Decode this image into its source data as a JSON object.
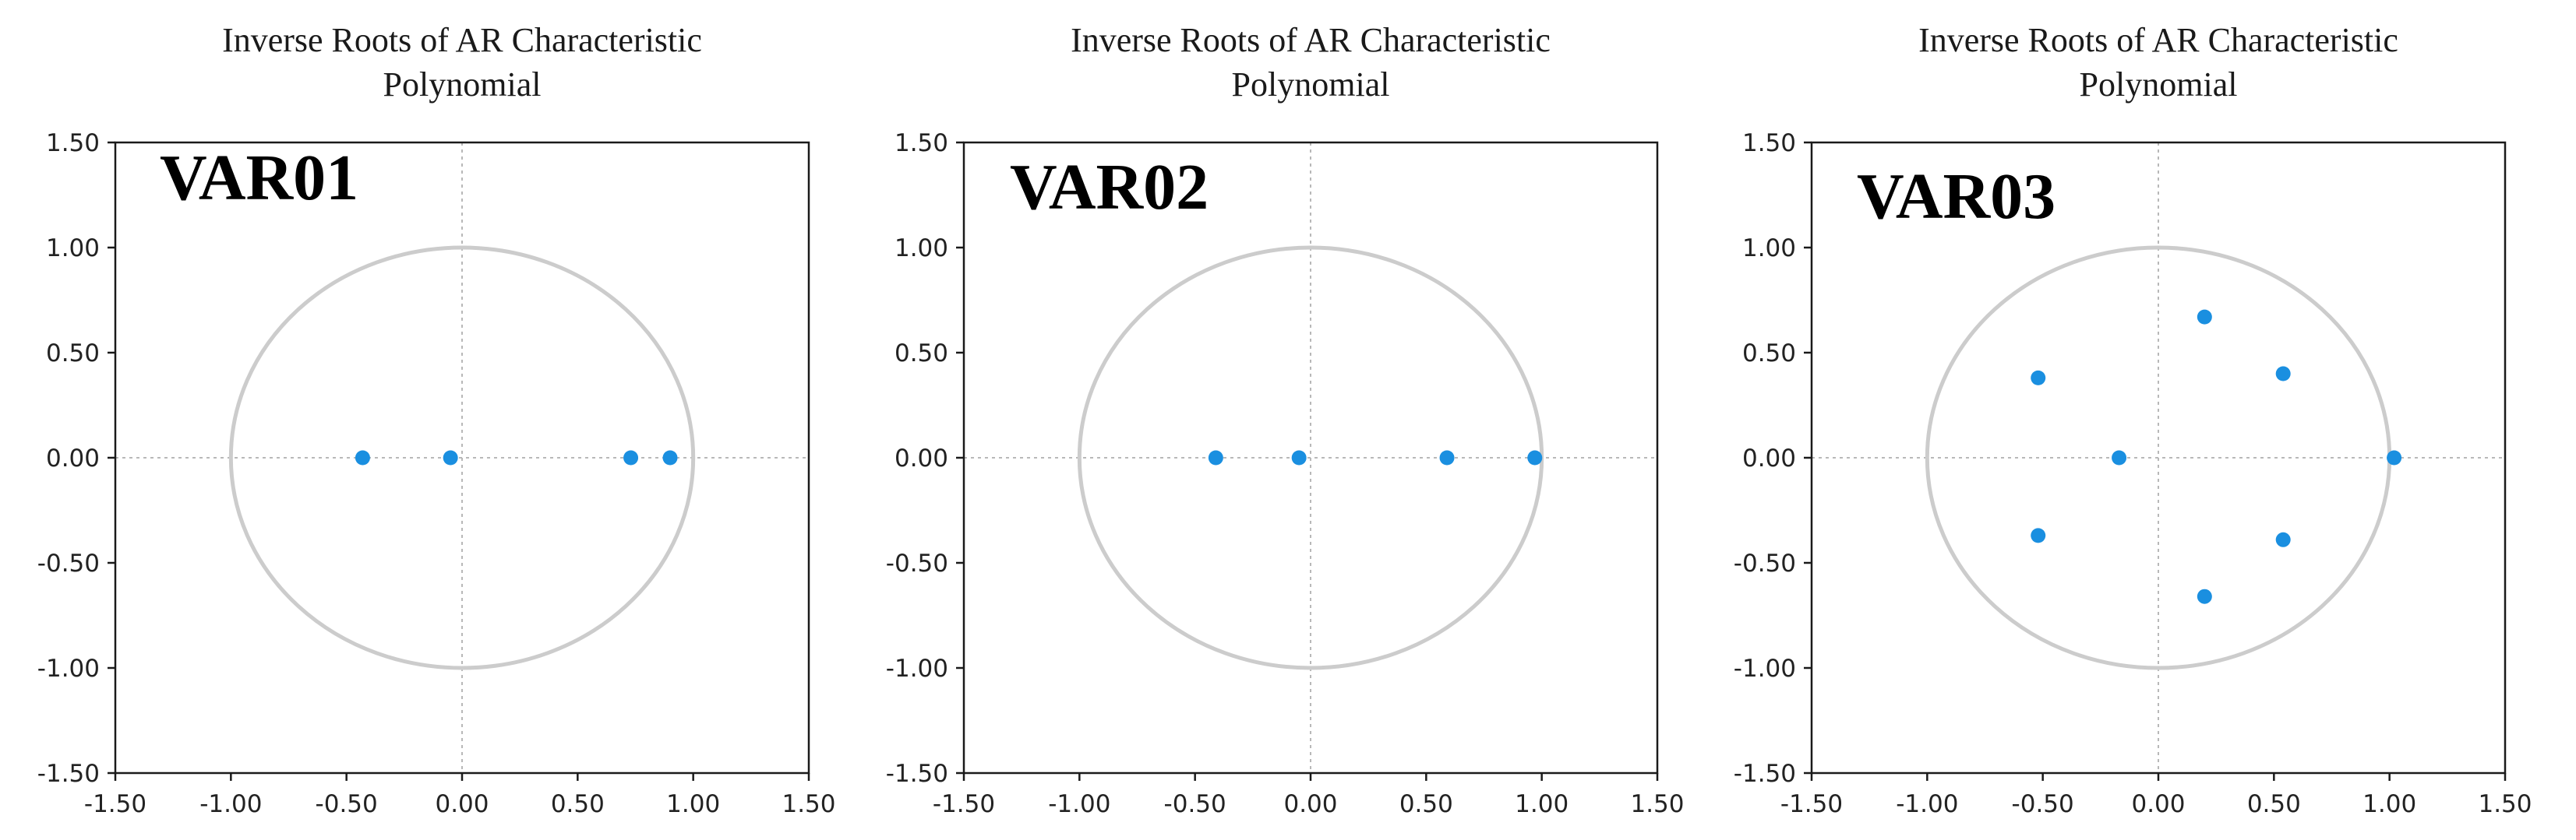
{
  "colors": {
    "point": "#1a8fe0",
    "circle": "#cccccc",
    "axis": "#1a1a1a",
    "zero_line": "#b8b8b8"
  },
  "chart_data": [
    {
      "type": "scatter",
      "title": [
        "Inverse Roots of AR Characteristic",
        "Polynomial"
      ],
      "panel_label": "VAR01",
      "xlim": [
        -1.5,
        1.5
      ],
      "ylim": [
        -1.5,
        1.5
      ],
      "xticks": [
        "-1.50",
        "-1.00",
        "-0.50",
        "0.00",
        "0.50",
        "1.00",
        "1.50"
      ],
      "yticks": [
        "1.50",
        "1.00",
        "0.50",
        "0.00",
        "-0.50",
        "-1.00",
        "-1.50"
      ],
      "unit_circle": true,
      "points": [
        {
          "x": -0.43,
          "y": 0.0
        },
        {
          "x": -0.05,
          "y": 0.0
        },
        {
          "x": 0.73,
          "y": 0.0
        },
        {
          "x": 0.9,
          "y": 0.0
        }
      ]
    },
    {
      "type": "scatter",
      "title": [
        "Inverse Roots of AR Characteristic",
        "Polynomial"
      ],
      "panel_label": "VAR02",
      "xlim": [
        -1.5,
        1.5
      ],
      "ylim": [
        -1.5,
        1.5
      ],
      "xticks": [
        "-1.50",
        "-1.00",
        "-0.50",
        "0.00",
        "0.50",
        "1.00",
        "1.50"
      ],
      "yticks": [
        "1.50",
        "1.00",
        "0.50",
        "0.00",
        "-0.50",
        "-1.00",
        "-1.50"
      ],
      "unit_circle": true,
      "points": [
        {
          "x": -0.41,
          "y": 0.0
        },
        {
          "x": -0.05,
          "y": 0.0
        },
        {
          "x": 0.59,
          "y": 0.0
        },
        {
          "x": 0.97,
          "y": 0.0
        }
      ]
    },
    {
      "type": "scatter",
      "title": [
        "Inverse Roots of AR Characteristic",
        "Polynomial"
      ],
      "panel_label": "VAR03",
      "xlim": [
        -1.5,
        1.5
      ],
      "ylim": [
        -1.5,
        1.5
      ],
      "xticks": [
        "-1.50",
        "-1.00",
        "-0.50",
        "0.00",
        "0.50",
        "1.00",
        "1.50"
      ],
      "yticks": [
        "1.50",
        "1.00",
        "0.50",
        "0.00",
        "-0.50",
        "-1.00",
        "-1.50"
      ],
      "unit_circle": true,
      "points": [
        {
          "x": 0.2,
          "y": 0.67
        },
        {
          "x": -0.52,
          "y": 0.38
        },
        {
          "x": 0.54,
          "y": 0.4
        },
        {
          "x": -0.17,
          "y": 0.0
        },
        {
          "x": 1.02,
          "y": 0.0
        },
        {
          "x": -0.52,
          "y": -0.37
        },
        {
          "x": 0.54,
          "y": -0.39
        },
        {
          "x": 0.2,
          "y": -0.66
        }
      ]
    }
  ]
}
